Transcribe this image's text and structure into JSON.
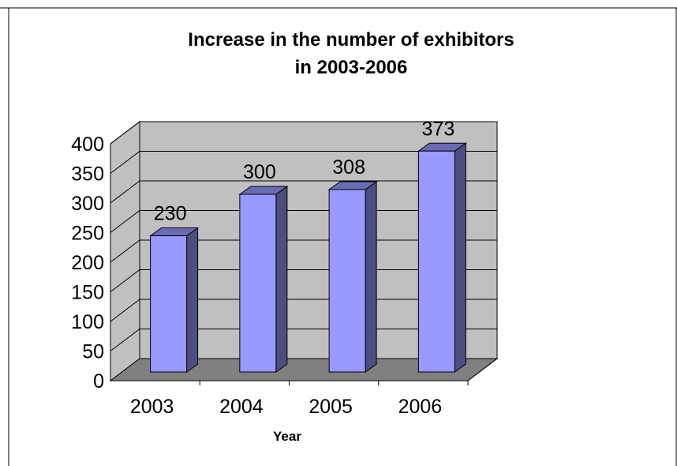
{
  "chart_data": {
    "type": "bar",
    "title_lines": [
      "Increase in the number of exhibitors",
      "in 2003-2006"
    ],
    "categories": [
      "2003",
      "2004",
      "2005",
      "2006"
    ],
    "values": [
      230,
      300,
      308,
      373
    ],
    "data_labels": [
      "230",
      "300",
      "308",
      "373"
    ],
    "xlabel": "Year",
    "ylabel": "",
    "ylim": [
      0,
      400
    ],
    "yticks": [
      0,
      50,
      100,
      150,
      200,
      250,
      300,
      350,
      400
    ],
    "ytick_labels": [
      "0",
      "50",
      "100",
      "150",
      "200",
      "250",
      "300",
      "350",
      "400"
    ],
    "grid": true,
    "legend": "none",
    "style": "3d-column",
    "colors": {
      "bar_front": "#9999ff",
      "bar_side": "#4d4d80",
      "bar_top": "#6b6bb3",
      "back_wall": "#c0c0c0",
      "side_wall": "#c0c0c0",
      "floor": "#808080",
      "gridline": "#000000"
    }
  }
}
